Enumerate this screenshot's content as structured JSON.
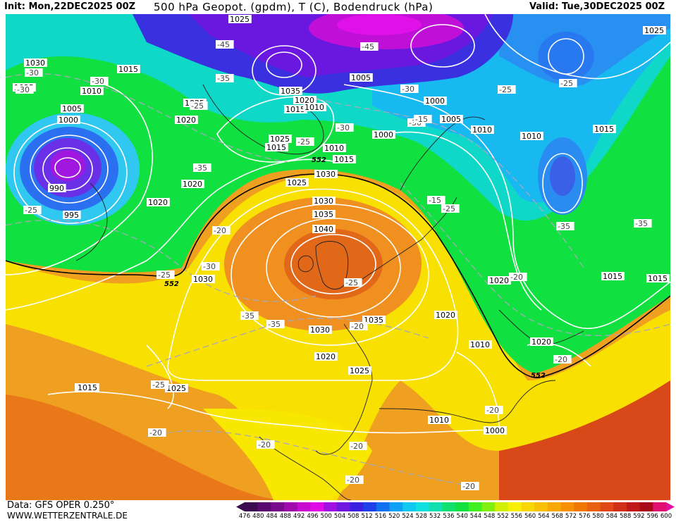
{
  "header": {
    "init": "Init: Mon,22DEC2025 00Z",
    "title": "500 hPa Geopot. (gpdm), T (C), Bodendruck (hPa)",
    "valid": "Valid: Tue,30DEC2025 00Z"
  },
  "footer": {
    "data_source": "Data: GFS OPER 0.250°",
    "website": "WWW.WETTERZENTRALE.DE"
  },
  "scale": {
    "labels": [
      "476",
      "480",
      "484",
      "488",
      "492",
      "496",
      "500",
      "504",
      "508",
      "512",
      "516",
      "520",
      "524",
      "528",
      "532",
      "536",
      "540",
      "544",
      "548",
      "552",
      "556",
      "560",
      "564",
      "568",
      "572",
      "576",
      "580",
      "584",
      "588",
      "592",
      "596",
      "600"
    ],
    "colors": [
      "#3d0b4f",
      "#5a0a6e",
      "#7a0a8c",
      "#a00aac",
      "#c80ad0",
      "#e00ae6",
      "#a010e0",
      "#7018e0",
      "#3a20e0",
      "#1e40e8",
      "#1070f0",
      "#10a0f8",
      "#10c8f0",
      "#10e0e0",
      "#10e0b0",
      "#10e070",
      "#10e040",
      "#40f020",
      "#80f010",
      "#d0f000",
      "#f8f000",
      "#f8d800",
      "#f8c000",
      "#f8a800",
      "#f89000",
      "#f07800",
      "#e86010",
      "#e04818",
      "#d03018",
      "#c01818",
      "#a80818",
      "#e01070"
    ]
  },
  "pressure_labels": [
    "1025",
    "1030",
    "1025",
    "1015",
    "1010",
    "1005",
    "1000",
    "990",
    "995",
    "1030",
    "1020",
    "1025",
    "1035",
    "1020",
    "1015",
    "1010",
    "1005",
    "1000",
    "1000",
    "1005",
    "1010",
    "1015",
    "1025",
    "1015",
    "1010",
    "1015",
    "1020",
    "1020",
    "1025",
    "1030",
    "1035",
    "1040",
    "1035",
    "1030",
    "1020",
    "1025",
    "1030",
    "1025",
    "1015",
    "1020",
    "1010",
    "1010",
    "1000",
    "1010",
    "1015",
    "1020",
    "1020",
    "1015",
    "1015",
    "1025"
  ],
  "temp_labels": [
    "-30",
    "-30",
    "-30",
    "-45",
    "-35",
    "-45",
    "-25",
    "-30",
    "-30",
    "-30",
    "-25",
    "-35",
    "-35",
    "-20",
    "-25",
    "-30",
    "-35",
    "-35",
    "-25",
    "-20",
    "-25",
    "-20",
    "-20",
    "-20",
    "-20",
    "-20",
    "-20",
    "-15",
    "-15",
    "-25",
    "-25",
    "-20",
    "-20",
    "-25",
    "-35",
    "-25"
  ],
  "height_labels": [
    "552",
    "552",
    "552"
  ],
  "color_theme": {
    "cold_core": "#7a18e0",
    "blue": "#2870f0",
    "cyan": "#10d0f0",
    "green": "#10e040",
    "yellow": "#f8f000",
    "orange": "#f0a020",
    "red_core": "#e05010"
  }
}
